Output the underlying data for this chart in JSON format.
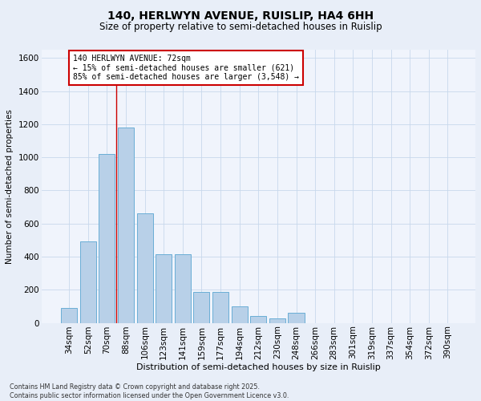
{
  "title_line1": "140, HERLWYN AVENUE, RUISLIP, HA4 6HH",
  "title_line2": "Size of property relative to semi-detached houses in Ruislip",
  "xlabel": "Distribution of semi-detached houses by size in Ruislip",
  "ylabel": "Number of semi-detached properties",
  "categories": [
    "34sqm",
    "52sqm",
    "70sqm",
    "88sqm",
    "106sqm",
    "123sqm",
    "141sqm",
    "159sqm",
    "177sqm",
    "194sqm",
    "212sqm",
    "230sqm",
    "248sqm",
    "266sqm",
    "283sqm",
    "301sqm",
    "319sqm",
    "337sqm",
    "354sqm",
    "372sqm",
    "390sqm"
  ],
  "values": [
    90,
    490,
    1020,
    1180,
    660,
    415,
    415,
    185,
    185,
    100,
    40,
    25,
    60,
    0,
    0,
    0,
    0,
    0,
    0,
    0,
    0
  ],
  "bar_color": "#b8d0e8",
  "bar_edge_color": "#6aaed6",
  "vline_x": 2.5,
  "property_size": "72sqm",
  "pct_smaller": "15%",
  "n_smaller": "621",
  "pct_larger": "85%",
  "n_larger": "3,548",
  "vline_color": "#cc0000",
  "box_edge_color": "#cc0000",
  "ylim": [
    0,
    1650
  ],
  "yticks": [
    0,
    200,
    400,
    600,
    800,
    1000,
    1200,
    1400,
    1600
  ],
  "footer_line1": "Contains HM Land Registry data © Crown copyright and database right 2025.",
  "footer_line2": "Contains public sector information licensed under the Open Government Licence v3.0.",
  "bg_color": "#e8eef8",
  "plot_bg_color": "#f0f4fc",
  "grid_color": "#c8d8ec",
  "title_fontsize": 10,
  "subtitle_fontsize": 8.5,
  "xlabel_fontsize": 8,
  "ylabel_fontsize": 7.5,
  "tick_fontsize": 7.5,
  "ann_fontsize": 7
}
